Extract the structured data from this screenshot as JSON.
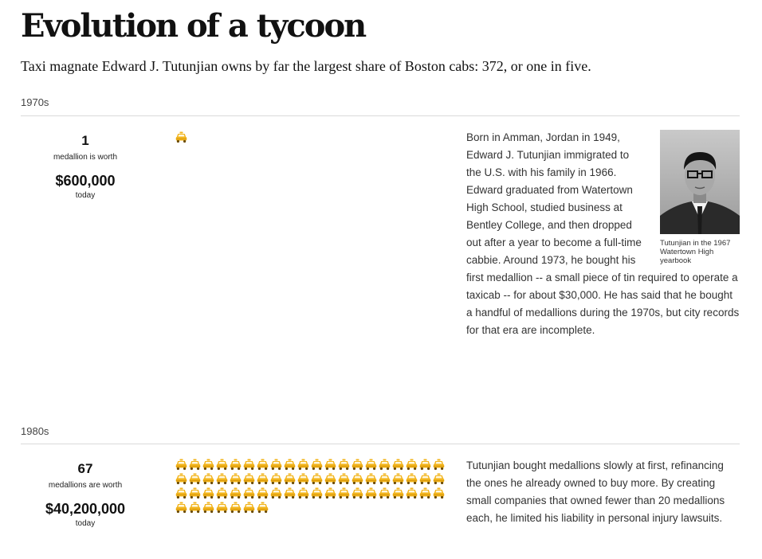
{
  "header": {
    "title": "Evolution of a tycoon",
    "subtitle": "Taxi magnate Edward J. Tutunjian owns by far the largest share of Boston cabs: 372, or one in five."
  },
  "icons": {
    "cab": "taxi-icon",
    "cab_color": "#f2b41c"
  },
  "decades": [
    {
      "label": "1970s",
      "count": "1",
      "caption": "medallion is worth",
      "worth": "$600,000",
      "today": "today",
      "cab_count": 1,
      "bio": "Born in Amman, Jordan in 1949, Edward J. Tutunjian immigrated to the U.S. with his family in 1966. Edward graduated from Watertown High School, studied business at Bentley College, and then dropped out after a year to become a full-time cabbie. Around 1973, he bought his first medallion -- a small piece of tin required to operate a taxicab -- for about $30,000. He has said that he bought a handful of medallions during the 1970s, but city records for that era are incomplete.",
      "photo_caption": "Tutunjian in the 1967 Watertown High yearbook"
    },
    {
      "label": "1980s",
      "count": "67",
      "caption": "medallions are worth",
      "worth": "$40,200,000",
      "today": "today",
      "cab_count": 67,
      "bio": "Tutunjian bought medallions slowly at first, refinancing the ones he already owned to buy more. By creating small companies that owned fewer than 20 medallions each, he limited his liability in personal injury lawsuits."
    }
  ]
}
